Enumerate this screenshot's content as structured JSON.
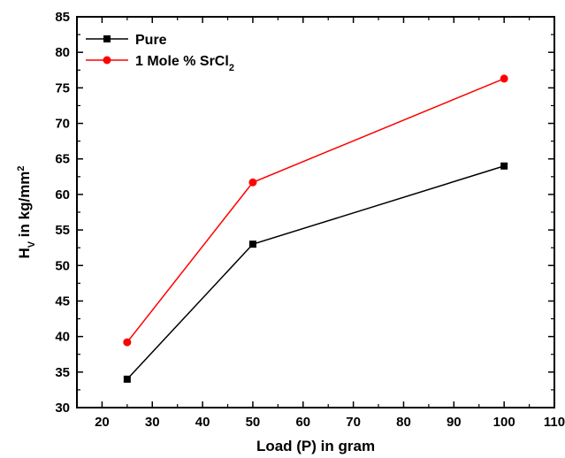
{
  "chart_data": {
    "type": "line",
    "xlabel": "Load (P) in gram",
    "ylabel": {
      "parts": [
        {
          "text": "H",
          "style": "normal"
        },
        {
          "text": "V",
          "style": "sub"
        },
        {
          "text": " in kg/mm",
          "style": "normal"
        },
        {
          "text": "2",
          "style": "sup"
        }
      ]
    },
    "xlim": [
      15,
      110
    ],
    "ylim": [
      30,
      85
    ],
    "xticks": [
      20,
      30,
      40,
      50,
      60,
      70,
      80,
      90,
      100,
      110
    ],
    "yticks": [
      30,
      35,
      40,
      45,
      50,
      55,
      60,
      65,
      70,
      75,
      80,
      85
    ],
    "grid": false,
    "legend_position": "top-left",
    "series": [
      {
        "name": {
          "parts": [
            {
              "text": "Pure",
              "style": "normal"
            }
          ]
        },
        "color": "#000000",
        "marker": "square",
        "x": [
          25,
          50,
          100
        ],
        "y": [
          34,
          53,
          64
        ]
      },
      {
        "name": {
          "parts": [
            {
              "text": "1 Mole % SrCl",
              "style": "normal"
            },
            {
              "text": "2",
              "style": "sub"
            }
          ]
        },
        "color": "#ff0000",
        "marker": "circle",
        "x": [
          25,
          50,
          100
        ],
        "y": [
          39.2,
          61.7,
          76.3
        ]
      }
    ]
  }
}
